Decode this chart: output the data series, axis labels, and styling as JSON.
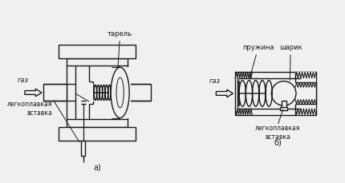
{
  "bg_color": "#f0f0f0",
  "line_color": "#1a1a1a",
  "label_a": "а)",
  "label_b": "б)",
  "text_tarelj": "тарель",
  "text_prujina": "пружина",
  "text_sharik": "шарик",
  "text_gaz": "газ",
  "text_legko_a": "легкоплавкая\nвставка",
  "text_legko_b": "легкоплавкая\nвставка",
  "lw": 1.0,
  "fontsize": 6.0
}
